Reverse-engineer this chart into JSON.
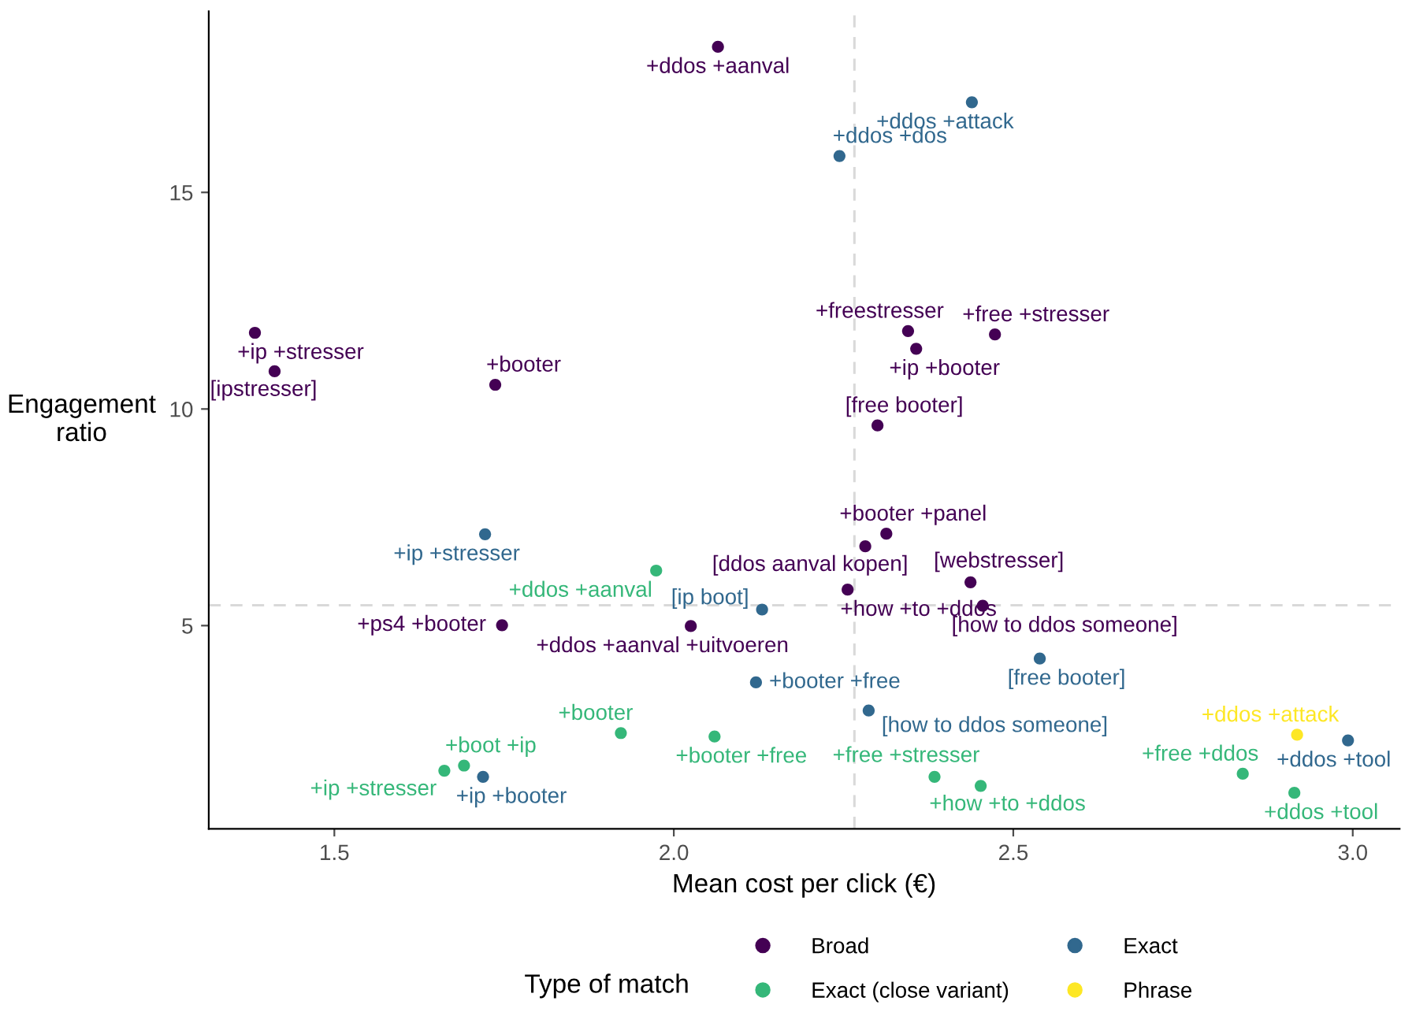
{
  "chart_data": {
    "type": "scatter",
    "xlabel": "Mean cost per click (€)",
    "ylabel": "Engagement\nratio",
    "legend_title": "Type of match",
    "xlim": [
      1.315,
      3.069
    ],
    "ylim": [
      0.31,
      19.18
    ],
    "xticks": [
      1.5,
      {
        "value": 2,
        "label": "2.0"
      },
      2.5,
      {
        "value": 3,
        "label": "3.0"
      }
    ],
    "yticks": [
      5,
      10,
      15
    ],
    "grid": false,
    "legend": "bottom",
    "marker": "circle",
    "ref_lines": [
      {
        "axis": "x",
        "value": 2.266,
        "color": "#d9d9d9",
        "line_style": "dashed"
      },
      {
        "axis": "y",
        "value": 5.47,
        "color": "#d9d9d9",
        "line_style": "dashed"
      }
    ],
    "series": [
      {
        "name": "Broad",
        "color": "#440154",
        "x": [
          2.065,
          1.383,
          1.412,
          1.737,
          2.345,
          2.357,
          2.473,
          2.3,
          2.313,
          2.282,
          2.256,
          2.437,
          2.455,
          1.747,
          2.025
        ],
        "values": [
          18.36,
          11.76,
          10.87,
          10.56,
          11.8,
          11.39,
          11.72,
          9.62,
          7.12,
          6.83,
          5.83,
          6.0,
          5.46,
          5.01,
          4.99
        ]
      },
      {
        "name": "Exact",
        "color": "#31688e",
        "x": [
          2.439,
          2.244,
          1.722,
          2.13,
          2.121,
          2.287,
          2.539,
          2.993,
          1.719
        ],
        "values": [
          17.08,
          15.84,
          7.11,
          5.37,
          3.69,
          3.04,
          4.24,
          2.35,
          1.51
        ]
      },
      {
        "name": "Exact (close variant)",
        "color": "#35b779",
        "x": [
          1.974,
          1.922,
          2.06,
          1.691,
          1.662,
          2.384,
          2.452,
          2.838,
          2.914
        ],
        "values": [
          6.27,
          2.52,
          2.44,
          1.77,
          1.65,
          1.51,
          1.3,
          1.58,
          1.14
        ]
      },
      {
        "name": "Phrase",
        "color": "#fde725",
        "x": [
          2.918
        ],
        "values": [
          2.48
        ]
      }
    ],
    "annotations": [
      {
        "text": "+ddos +aanval",
        "x": 2.065,
        "y": 18.36
      },
      {
        "text": "+ip +stresser",
        "x": 1.383,
        "y": 11.76
      },
      {
        "text": "[ipstresser]",
        "x": 1.412,
        "y": 10.87
      },
      {
        "text": "+booter",
        "x": 1.737,
        "y": 10.56
      },
      {
        "text": "+freestresser",
        "x": 2.345,
        "y": 11.8
      },
      {
        "text": "+ip +booter",
        "x": 2.357,
        "y": 11.39
      },
      {
        "text": "+free +stresser",
        "x": 2.473,
        "y": 11.72
      },
      {
        "text": "[free booter]",
        "x": 2.3,
        "y": 9.62
      },
      {
        "text": "+booter +panel",
        "x": 2.313,
        "y": 7.12
      },
      {
        "text": "[ddos aanval kopen]",
        "x": 2.282,
        "y": 6.83
      },
      {
        "text": "+how +to +ddos",
        "x": 2.256,
        "y": 5.83
      },
      {
        "text": "[webstresser]",
        "x": 2.437,
        "y": 6.0
      },
      {
        "text": "[how to ddos someone]",
        "x": 2.455,
        "y": 5.46
      },
      {
        "text": "+ps4 +booter",
        "x": 1.747,
        "y": 5.01
      },
      {
        "text": "+ddos +aanval +uitvoeren",
        "x": 2.025,
        "y": 4.99
      },
      {
        "text": "+ddos +attack",
        "x": 2.439,
        "y": 17.08
      },
      {
        "text": "+ddos +dos",
        "x": 2.244,
        "y": 15.84
      },
      {
        "text": "+ip +stresser",
        "x": 1.722,
        "y": 7.11
      },
      {
        "text": "[ip boot]",
        "x": 2.13,
        "y": 5.37
      },
      {
        "text": "+booter +free",
        "x": 2.121,
        "y": 3.69
      },
      {
        "text": "[how to ddos someone]",
        "x": 2.287,
        "y": 3.04
      },
      {
        "text": "[free booter]",
        "x": 2.539,
        "y": 4.24
      },
      {
        "text": "+ddos +tool",
        "x": 2.993,
        "y": 2.35
      },
      {
        "text": "+ip +booter",
        "x": 1.719,
        "y": 1.51
      },
      {
        "text": "+ddos +aanval",
        "x": 1.974,
        "y": 6.27
      },
      {
        "text": "+booter",
        "x": 1.922,
        "y": 2.52
      },
      {
        "text": "+booter +free",
        "x": 2.06,
        "y": 2.44
      },
      {
        "text": "+boot +ip",
        "x": 1.691,
        "y": 1.77
      },
      {
        "text": "+ip +stresser",
        "x": 1.662,
        "y": 1.65
      },
      {
        "text": "+free +stresser",
        "x": 2.384,
        "y": 1.51
      },
      {
        "text": "+how +to +ddos",
        "x": 2.452,
        "y": 1.3
      },
      {
        "text": "+free +ddos",
        "x": 2.838,
        "y": 1.58
      },
      {
        "text": "+ddos +tool",
        "x": 2.914,
        "y": 1.14
      },
      {
        "text": "+ddos +attack",
        "x": 2.918,
        "y": 2.48
      }
    ]
  }
}
